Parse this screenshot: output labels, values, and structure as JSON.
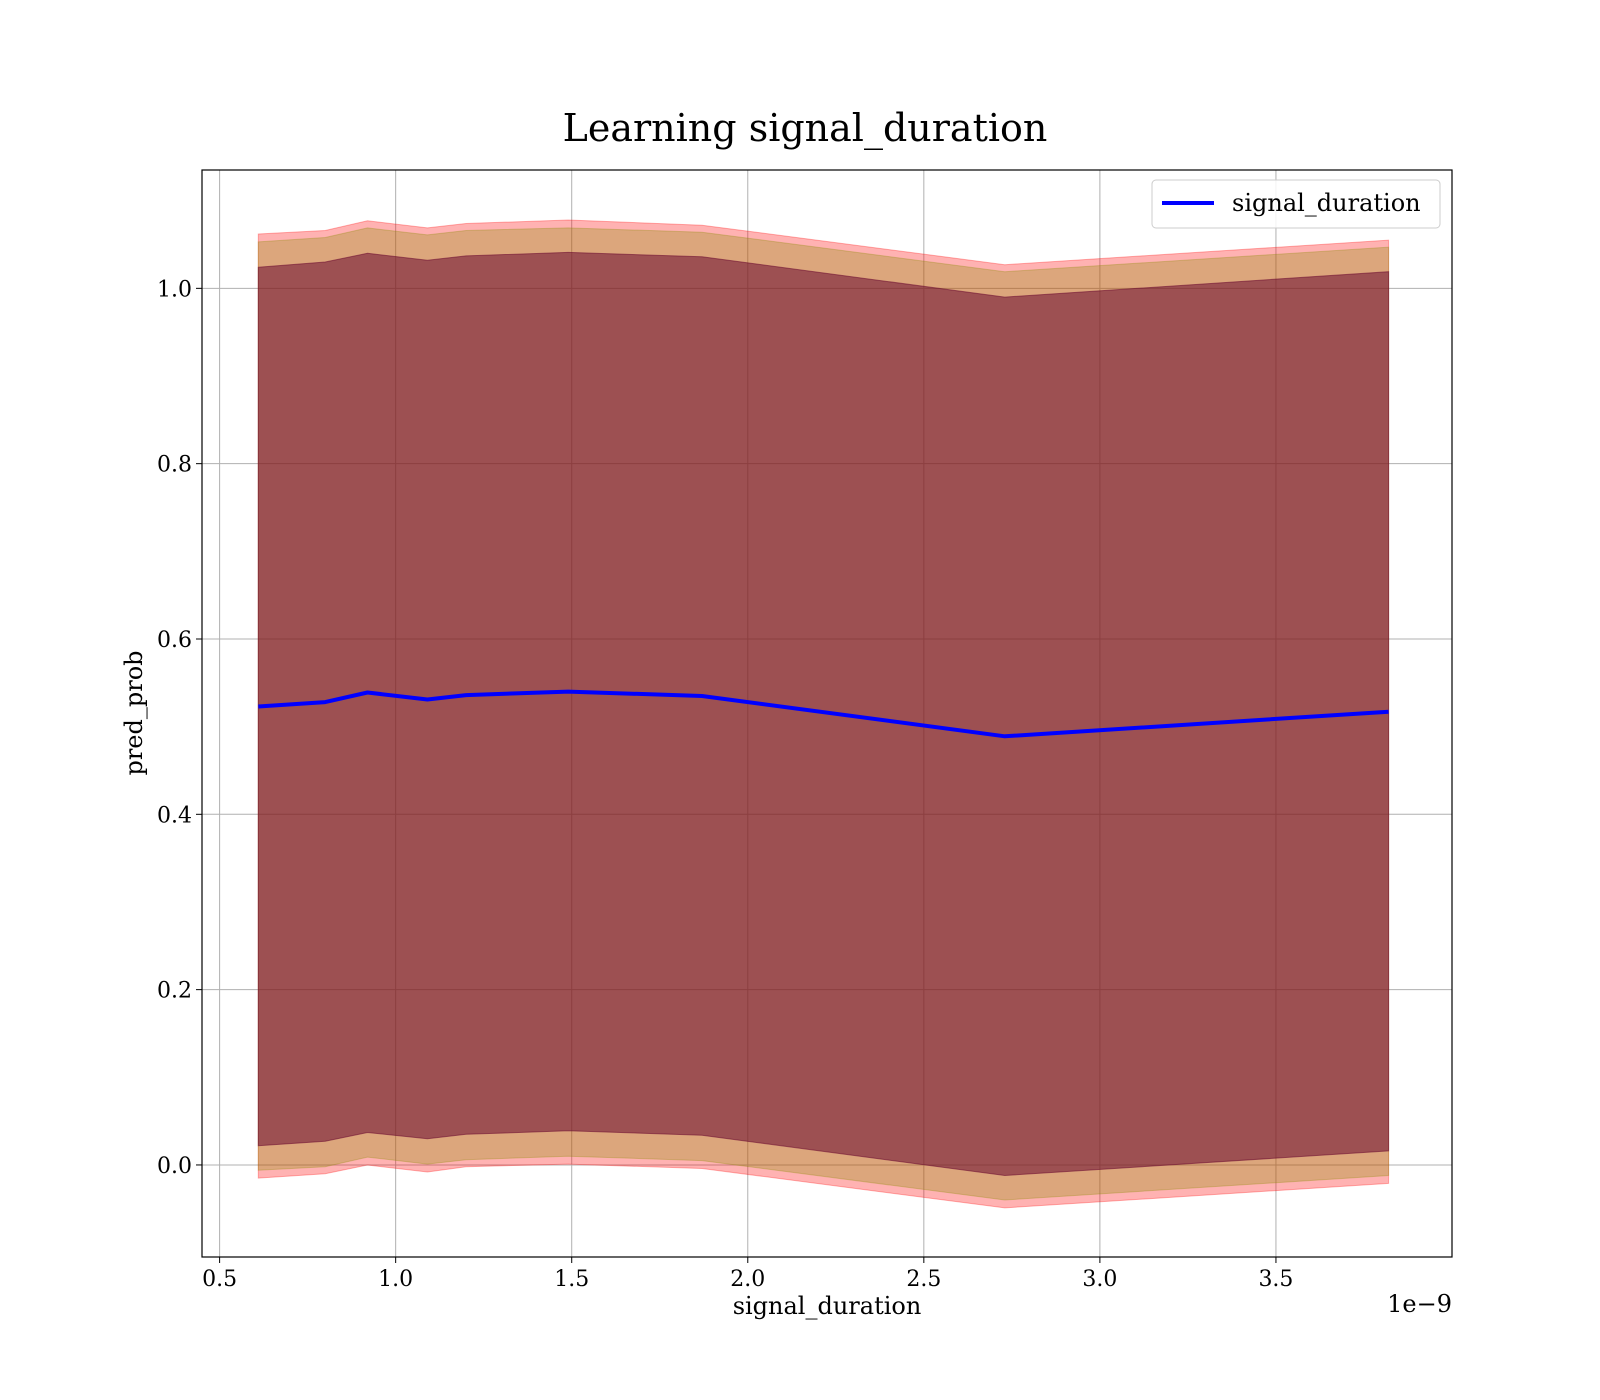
{
  "chart_data": {
    "type": "line",
    "title": "Learning signal_duration",
    "xlabel": "signal_duration",
    "ylabel": "pred_prob",
    "x_offset_text": "1e−9",
    "xlim": [
      0.45,
      4.0
    ],
    "ylim": [
      -0.105,
      1.135
    ],
    "x_ticks": [
      0.5,
      1.0,
      1.5,
      2.0,
      2.5,
      3.0,
      3.5
    ],
    "x_tick_labels": [
      "0.5",
      "1.0",
      "1.5",
      "2.0",
      "2.5",
      "3.0",
      "3.5"
    ],
    "y_ticks": [
      0.0,
      0.2,
      0.4,
      0.6,
      0.8,
      1.0
    ],
    "y_tick_labels": [
      "0.0",
      "0.2",
      "0.4",
      "0.6",
      "0.8",
      "1.0"
    ],
    "grid": true,
    "legend": {
      "position": "top-right",
      "entries": [
        "signal_duration"
      ]
    },
    "x": [
      0.61,
      0.8,
      0.92,
      1.09,
      1.2,
      1.49,
      1.87,
      2.73,
      3.82
    ],
    "series": [
      {
        "name": "signal_duration",
        "color": "#0000ff",
        "values": [
          0.523,
          0.528,
          0.539,
          0.531,
          0.536,
          0.54,
          0.535,
          0.489,
          0.517
        ]
      }
    ],
    "bands": [
      {
        "color": "#ff0000",
        "opacity": 0.3,
        "lower": [
          -0.015,
          -0.01,
          0.0,
          -0.008,
          -0.002,
          0.001,
          -0.004,
          -0.049,
          -0.021
        ],
        "upper": [
          1.062,
          1.066,
          1.077,
          1.069,
          1.074,
          1.078,
          1.072,
          1.027,
          1.055
        ]
      },
      {
        "color": "#8b8b00",
        "opacity": 0.3,
        "lower": [
          -0.006,
          -0.002,
          0.009,
          0.001,
          0.006,
          0.01,
          0.005,
          -0.04,
          -0.012
        ],
        "upper": [
          1.053,
          1.058,
          1.069,
          1.061,
          1.066,
          1.069,
          1.064,
          1.019,
          1.047
        ]
      },
      {
        "color": "#6a0a30",
        "opacity": 0.55,
        "lower": [
          0.022,
          0.027,
          0.037,
          0.03,
          0.035,
          0.039,
          0.034,
          -0.012,
          0.016
        ],
        "upper": [
          1.024,
          1.03,
          1.04,
          1.032,
          1.037,
          1.041,
          1.036,
          0.99,
          1.019
        ]
      }
    ]
  }
}
